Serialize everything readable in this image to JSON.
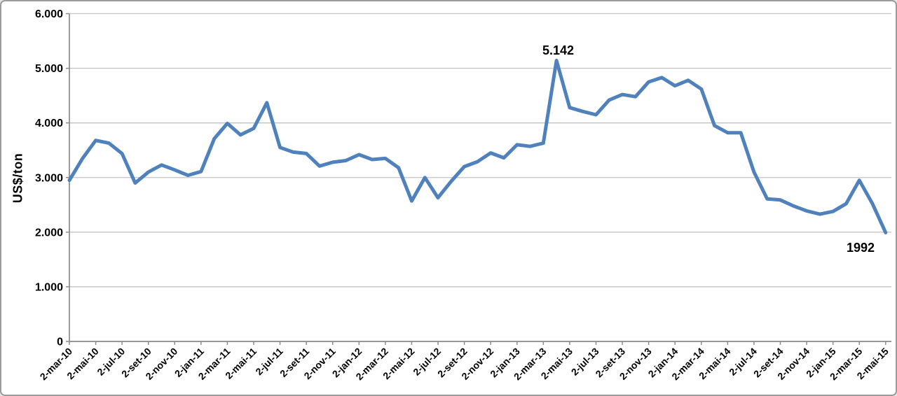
{
  "chart": {
    "y_axis_title": "US$/ton",
    "peak_annotation": "5.142",
    "end_annotation": "1992",
    "colors": {
      "line": "#4F81BD",
      "grid": "#C3C3C3",
      "axis": "#8C8C8C",
      "text": "#000000",
      "frame_border": "#9B9B9B",
      "background": "#FFFFFF"
    }
  },
  "chart_data": {
    "type": "line",
    "title": "",
    "xlabel": "",
    "ylabel": "US$/ton",
    "ylim": [
      0,
      6000
    ],
    "grid": true,
    "legend": false,
    "y_tick_values": [
      0,
      1000,
      2000,
      3000,
      4000,
      5000,
      6000
    ],
    "y_tick_labels": [
      "0",
      "1.000",
      "2.000",
      "3.000",
      "4.000",
      "5.000",
      "6.000"
    ],
    "x": [
      "2-mar-10",
      "2-abr-10",
      "2-mai-10",
      "2-jun-10",
      "2-jul-10",
      "2-ago-10",
      "2-set-10",
      "2-out-10",
      "2-nov-10",
      "2-dez-10",
      "2-jan-11",
      "2-fev-11",
      "2-mar-11",
      "2-abr-11",
      "2-mai-11",
      "2-jun-11",
      "2-jul-11",
      "2-ago-11",
      "2-set-11",
      "2-out-11",
      "2-nov-11",
      "2-dez-11",
      "2-jan-12",
      "2-fev-12",
      "2-mar-12",
      "2-abr-12",
      "2-mai-12",
      "2-jun-12",
      "2-jul-12",
      "2-ago-12",
      "2-set-12",
      "2-out-12",
      "2-nov-12",
      "2-dez-12",
      "2-jan-13",
      "2-fev-13",
      "2-mar-13",
      "2-abr-13",
      "2-mai-13",
      "2-jun-13",
      "2-jul-13",
      "2-ago-13",
      "2-set-13",
      "2-out-13",
      "2-nov-13",
      "2-dez-13",
      "2-jan-14",
      "2-fev-14",
      "2-mar-14",
      "2-abr-14",
      "2-mai-14",
      "2-jun-14",
      "2-jul-14",
      "2-ago-14",
      "2-set-14",
      "2-out-14",
      "2-nov-14",
      "2-dez-14",
      "2-jan-15",
      "2-fev-15",
      "2-mar-15",
      "2-abr-15",
      "2-mai-15"
    ],
    "values": [
      2950,
      3350,
      3680,
      3630,
      3440,
      2900,
      3100,
      3230,
      3140,
      3040,
      3110,
      3710,
      3990,
      3780,
      3900,
      4370,
      3550,
      3465,
      3440,
      3210,
      3280,
      3310,
      3420,
      3330,
      3350,
      3180,
      2570,
      3000,
      2630,
      2930,
      3200,
      3290,
      3450,
      3360,
      3600,
      3570,
      3630,
      5142,
      4280,
      4210,
      4150,
      4420,
      4520,
      4480,
      4750,
      4830,
      4680,
      4780,
      4620,
      3950,
      3820,
      3820,
      3100,
      2610,
      2590,
      2480,
      2390,
      2330,
      2380,
      2520,
      2950,
      2520,
      1992
    ],
    "x_tick_labels": [
      "2-mar-10",
      "2-mai-10",
      "2-jul-10",
      "2-set-10",
      "2-nov-10",
      "2-jan-11",
      "2-mar-11",
      "2-mai-11",
      "2-jul-11",
      "2-set-11",
      "2-nov-11",
      "2-jan-12",
      "2-mar-12",
      "2-mai-12",
      "2-jul-12",
      "2-set-12",
      "2-nov-12",
      "2-jan-13",
      "2-mar-13",
      "2-mai-13",
      "2-jul-13",
      "2-set-13",
      "2-nov-13",
      "2-jan-14",
      "2-mar-14",
      "2-mai-14",
      "2-jul-14",
      "2-set-14",
      "2-nov-14",
      "2-jan-15",
      "2-mar-15",
      "2-mai-15"
    ],
    "annotations": [
      {
        "label": "5.142",
        "x": "2-abr-13",
        "value": 5142
      },
      {
        "label": "1992",
        "x": "2-mai-15",
        "value": 1992
      }
    ]
  }
}
